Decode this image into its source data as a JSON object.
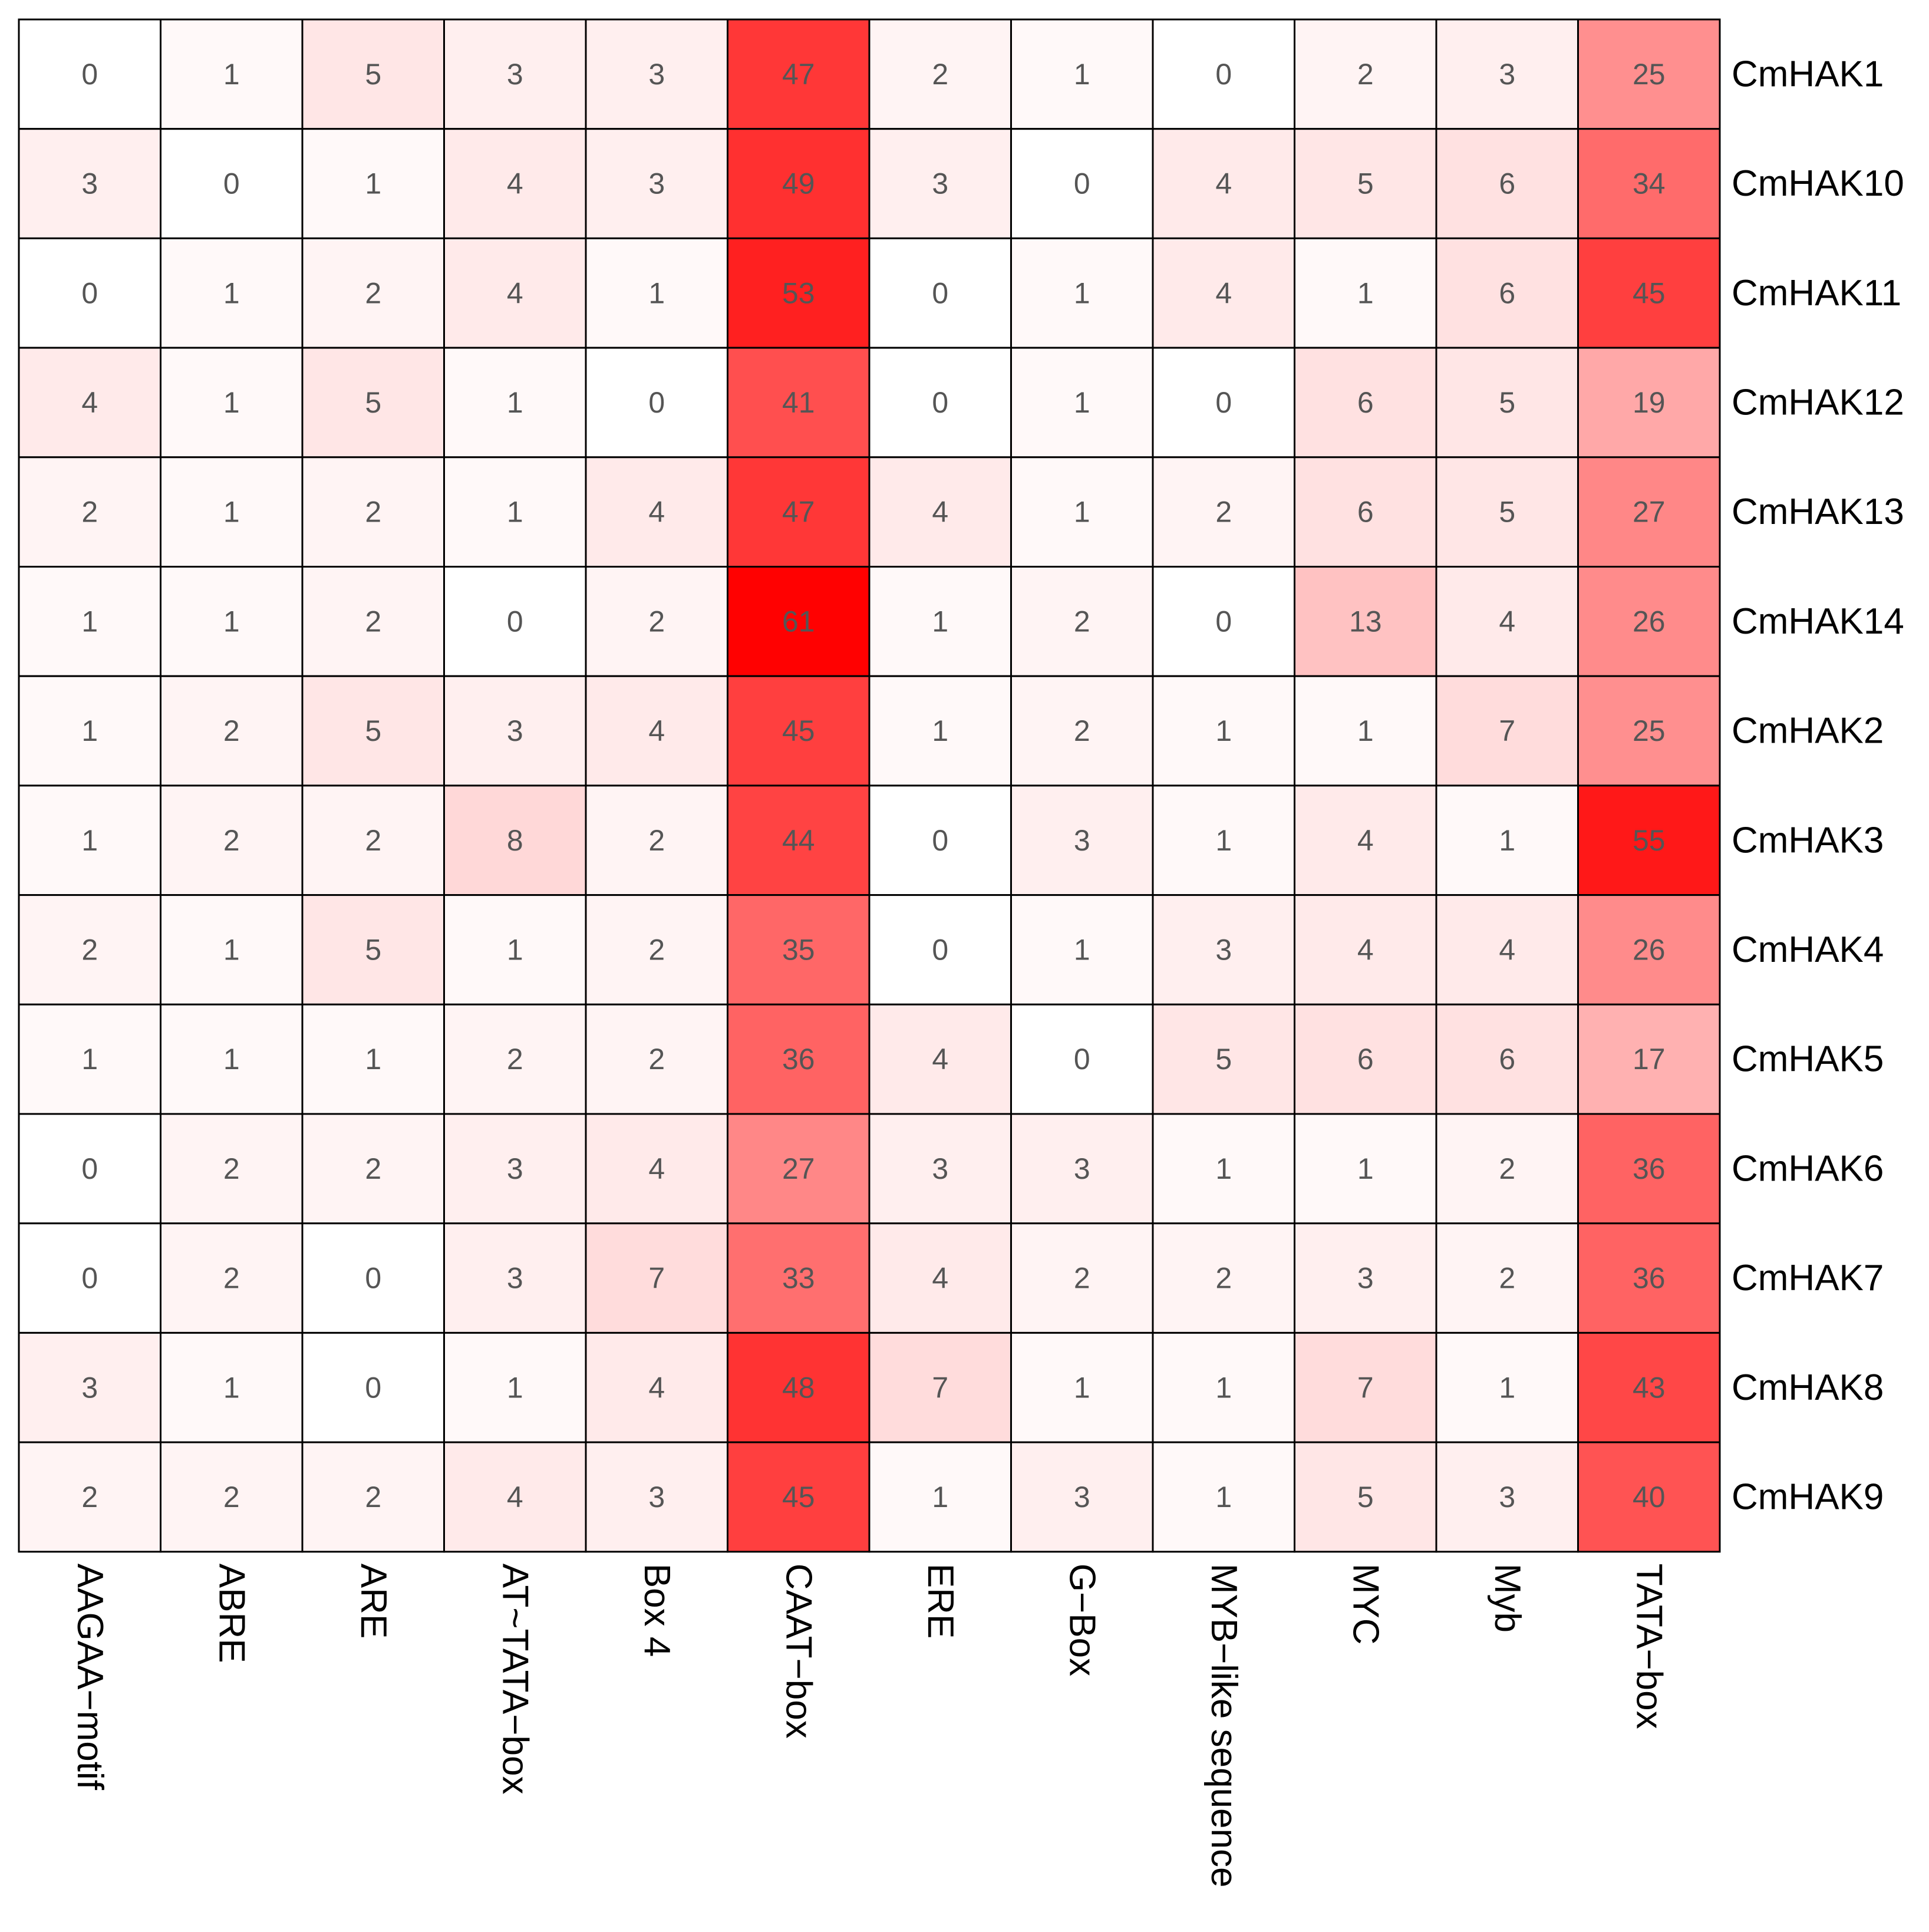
{
  "chart_data": {
    "type": "heatmap",
    "title": "",
    "color_low": "#ffffff",
    "color_high": "#ff0000",
    "border_color": "#000000",
    "columns": [
      "AAGAA−motif",
      "ABRE",
      "ARE",
      "AT~TATA−box",
      "Box 4",
      "CAAT−box",
      "ERE",
      "G−Box",
      "MYB−like sequence",
      "MYC",
      "Myb",
      "TATA−box"
    ],
    "rows": [
      "CmHAK1",
      "CmHAK10",
      "CmHAK11",
      "CmHAK12",
      "CmHAK13",
      "CmHAK14",
      "CmHAK2",
      "CmHAK3",
      "CmHAK4",
      "CmHAK5",
      "CmHAK6",
      "CmHAK7",
      "CmHAK8",
      "CmHAK9"
    ],
    "values": [
      [
        0,
        1,
        5,
        3,
        3,
        47,
        2,
        1,
        0,
        2,
        3,
        25
      ],
      [
        3,
        0,
        1,
        4,
        3,
        49,
        3,
        0,
        4,
        5,
        6,
        34
      ],
      [
        0,
        1,
        2,
        4,
        1,
        53,
        0,
        1,
        4,
        1,
        6,
        45
      ],
      [
        4,
        1,
        5,
        1,
        0,
        41,
        0,
        1,
        0,
        6,
        5,
        19
      ],
      [
        2,
        1,
        2,
        1,
        4,
        47,
        4,
        1,
        2,
        6,
        5,
        27
      ],
      [
        1,
        1,
        2,
        0,
        2,
        61,
        1,
        2,
        0,
        13,
        4,
        26
      ],
      [
        1,
        2,
        5,
        3,
        4,
        45,
        1,
        2,
        1,
        1,
        7,
        25
      ],
      [
        1,
        2,
        2,
        8,
        2,
        44,
        0,
        3,
        1,
        4,
        1,
        55
      ],
      [
        2,
        1,
        5,
        1,
        2,
        35,
        0,
        1,
        3,
        4,
        4,
        26
      ],
      [
        1,
        1,
        1,
        2,
        2,
        36,
        4,
        0,
        5,
        6,
        6,
        17
      ],
      [
        0,
        2,
        2,
        3,
        4,
        27,
        3,
        3,
        1,
        1,
        2,
        36
      ],
      [
        0,
        2,
        0,
        3,
        7,
        33,
        4,
        2,
        2,
        3,
        2,
        36
      ],
      [
        3,
        1,
        0,
        1,
        4,
        48,
        7,
        1,
        1,
        7,
        1,
        43
      ],
      [
        2,
        2,
        2,
        4,
        3,
        45,
        1,
        3,
        1,
        5,
        3,
        40
      ]
    ]
  }
}
